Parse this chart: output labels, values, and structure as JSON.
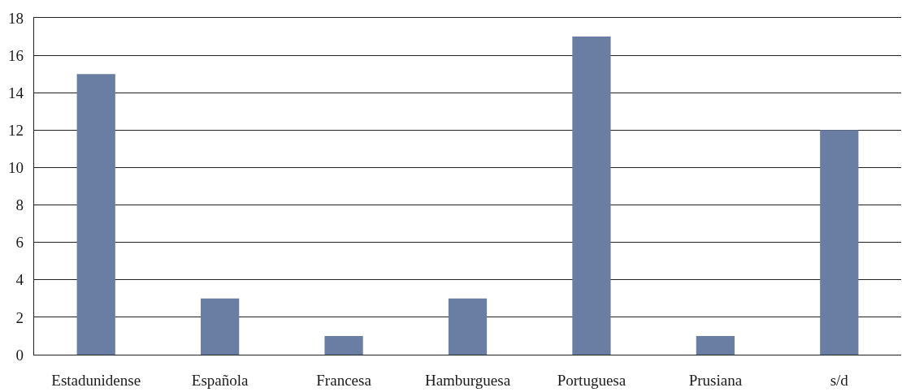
{
  "chart_data": {
    "type": "bar",
    "categories": [
      "Estadunidense",
      "Española",
      "Francesa",
      "Hamburguesa",
      "Portuguesa",
      "Prusiana",
      "s/d"
    ],
    "values": [
      15,
      3,
      1,
      3,
      17,
      1,
      12
    ],
    "color": "#6a7ea4",
    "ylim": [
      0,
      18
    ],
    "yticks": [
      0,
      2,
      4,
      6,
      8,
      10,
      12,
      14,
      16,
      18
    ],
    "grid": "y",
    "legend": false
  }
}
